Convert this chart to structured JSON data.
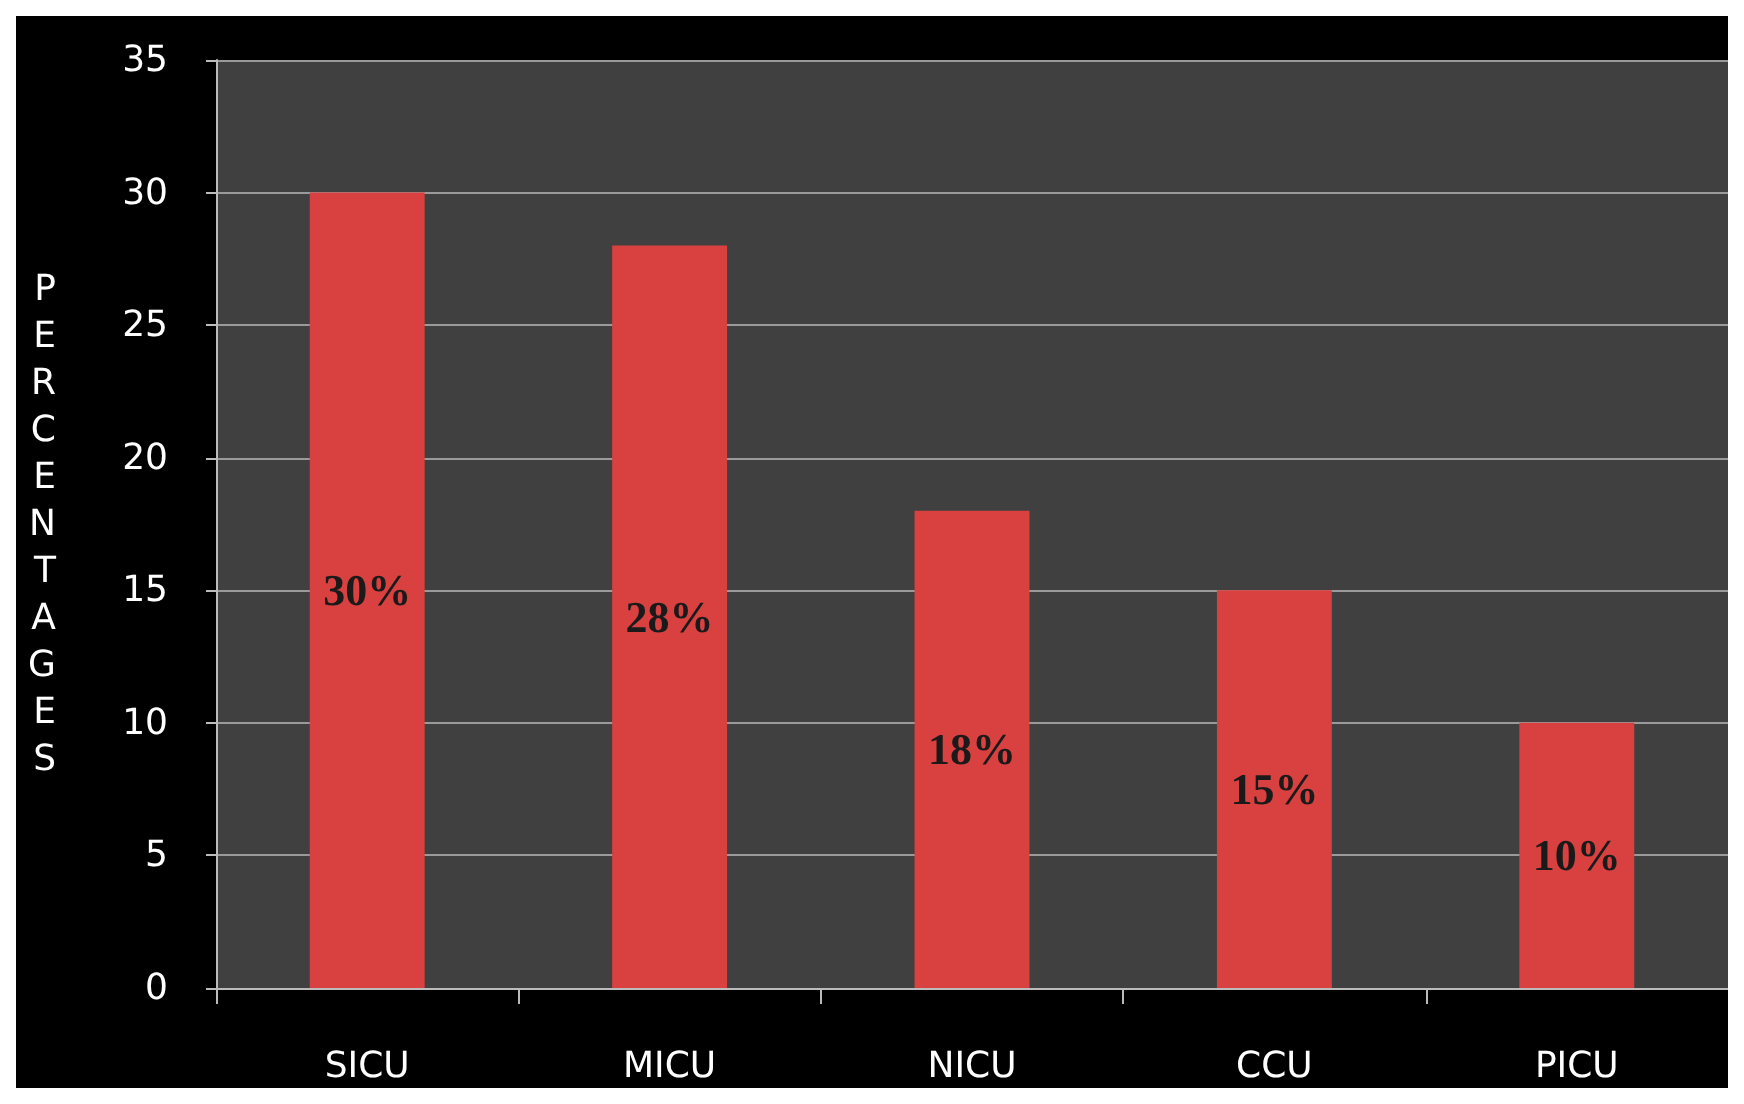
{
  "chart_data": {
    "type": "bar",
    "ylabel": "PERCENTAGES",
    "categories": [
      "SICU",
      "MICU",
      "NICU",
      "CCU",
      "PICU"
    ],
    "values": [
      30,
      28,
      18,
      15,
      10
    ],
    "value_labels": [
      "30%",
      "28%",
      "18%",
      "15%",
      "10%"
    ],
    "color": "#d94040",
    "ylim": [
      0,
      35
    ],
    "yticks": [
      0,
      5,
      10,
      15,
      20,
      25,
      30,
      35
    ],
    "grid": "y"
  }
}
